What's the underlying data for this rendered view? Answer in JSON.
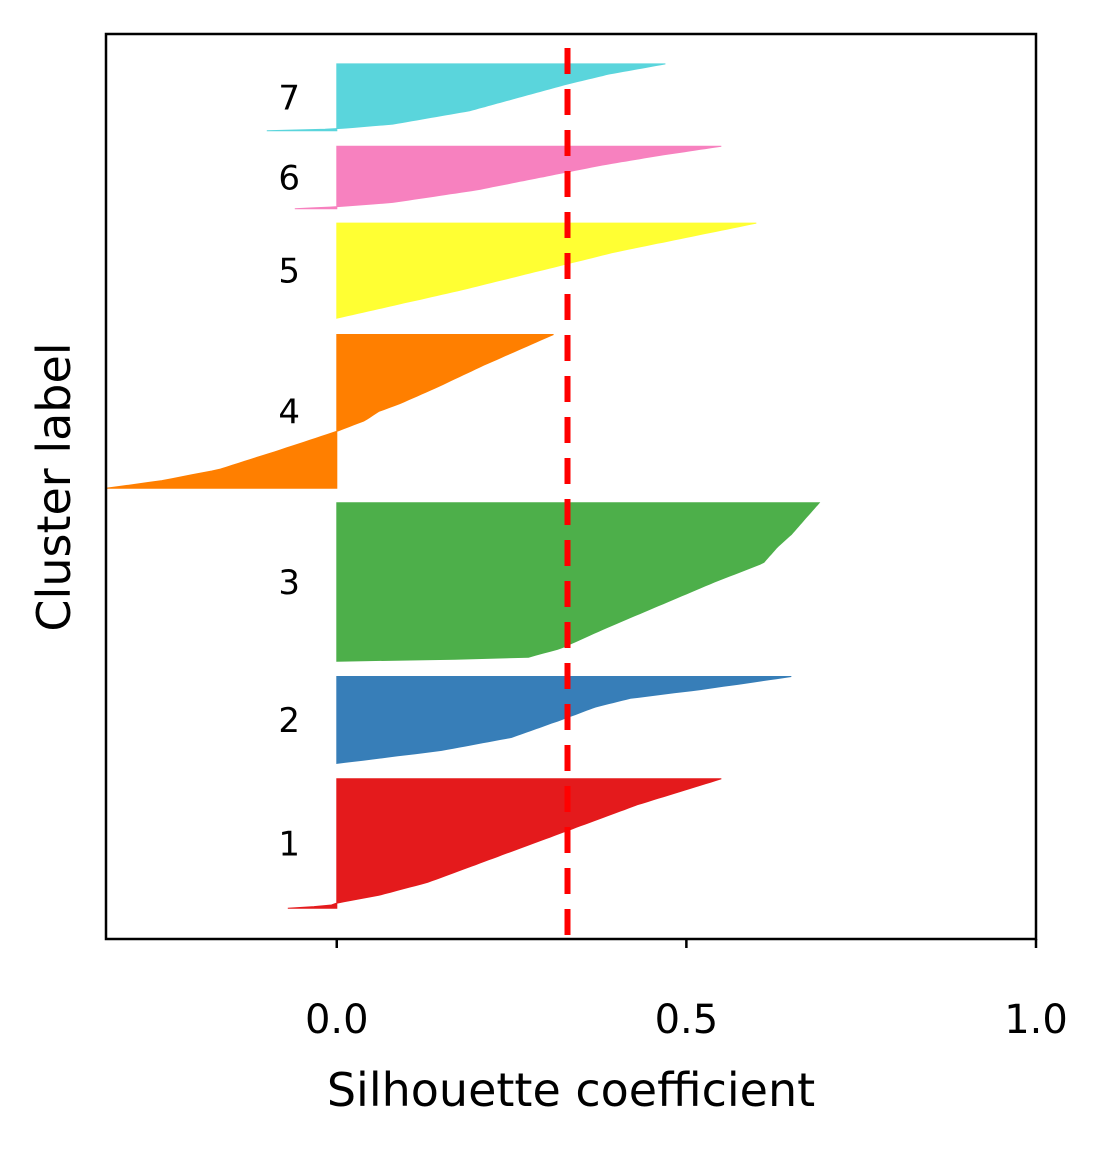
{
  "chart_data": {
    "type": "area",
    "title": "",
    "xlabel": "Silhouette coefficient",
    "ylabel": "Cluster label",
    "xlim": [
      -0.33,
      1.0
    ],
    "xticks": [
      {
        "value": 0.0,
        "label": "0.0"
      },
      {
        "value": 0.5,
        "label": "0.5"
      },
      {
        "value": 1.0,
        "label": "1.0"
      }
    ],
    "mean_silhouette": 0.33,
    "mean_line_color": "#ff0000",
    "y_units_total": 100,
    "clusters": [
      {
        "label": "1",
        "color": "#e41a1c",
        "y_start": 3.4,
        "y_end": 17.7,
        "min": -0.07,
        "max": 0.55,
        "profile": [
          [
            0,
            -0.07
          ],
          [
            0.02,
            -0.01
          ],
          [
            0.04,
            0.0
          ],
          [
            0.1,
            0.06
          ],
          [
            0.2,
            0.13
          ],
          [
            0.3,
            0.18
          ],
          [
            0.4,
            0.23
          ],
          [
            0.5,
            0.28
          ],
          [
            0.6,
            0.33
          ],
          [
            0.7,
            0.38
          ],
          [
            0.8,
            0.43
          ],
          [
            0.9,
            0.49
          ],
          [
            1,
            0.55
          ]
        ]
      },
      {
        "label": "2",
        "color": "#377eb8",
        "y_start": 19.4,
        "y_end": 29.0,
        "min": 0.0,
        "max": 0.65,
        "profile": [
          [
            0,
            0.0
          ],
          [
            0.05,
            0.05
          ],
          [
            0.15,
            0.15
          ],
          [
            0.3,
            0.25
          ],
          [
            0.5,
            0.32
          ],
          [
            0.65,
            0.37
          ],
          [
            0.75,
            0.42
          ],
          [
            0.85,
            0.52
          ],
          [
            0.93,
            0.59
          ],
          [
            1,
            0.65
          ]
        ]
      },
      {
        "label": "3",
        "color": "#4daf4a",
        "y_start": 30.7,
        "y_end": 48.2,
        "min": 0.0,
        "max": 0.69,
        "profile": [
          [
            0,
            0.0
          ],
          [
            0.02,
            0.27
          ],
          [
            0.08,
            0.32
          ],
          [
            0.2,
            0.38
          ],
          [
            0.35,
            0.46
          ],
          [
            0.5,
            0.54
          ],
          [
            0.62,
            0.61
          ],
          [
            0.72,
            0.63
          ],
          [
            0.8,
            0.65
          ],
          [
            0.9,
            0.67
          ],
          [
            1,
            0.69
          ]
        ]
      },
      {
        "label": "4",
        "color": "#ff7f00",
        "y_start": 49.8,
        "y_end": 66.8,
        "min": -0.33,
        "max": 0.31,
        "profile": [
          [
            0,
            -0.33
          ],
          [
            0.05,
            -0.25
          ],
          [
            0.12,
            -0.17
          ],
          [
            0.25,
            -0.08
          ],
          [
            0.37,
            0.0
          ],
          [
            0.44,
            0.04
          ],
          [
            0.5,
            0.06
          ],
          [
            0.55,
            0.09
          ],
          [
            0.65,
            0.14
          ],
          [
            0.8,
            0.21
          ],
          [
            0.92,
            0.27
          ],
          [
            1,
            0.31
          ]
        ]
      },
      {
        "label": "5",
        "color": "#ffff33",
        "y_start": 68.6,
        "y_end": 79.1,
        "min": 0.0,
        "max": 0.6,
        "profile": [
          [
            0,
            0.0
          ],
          [
            0.1,
            0.06
          ],
          [
            0.3,
            0.18
          ],
          [
            0.5,
            0.29
          ],
          [
            0.7,
            0.4
          ],
          [
            0.85,
            0.5
          ],
          [
            1,
            0.6
          ]
        ]
      },
      {
        "label": "6",
        "color": "#f781bf",
        "y_start": 80.7,
        "y_end": 87.6,
        "min": -0.06,
        "max": 0.55,
        "profile": [
          [
            0,
            -0.06
          ],
          [
            0.03,
            0.0
          ],
          [
            0.1,
            0.08
          ],
          [
            0.3,
            0.2
          ],
          [
            0.5,
            0.29
          ],
          [
            0.7,
            0.38
          ],
          [
            0.85,
            0.46
          ],
          [
            1,
            0.55
          ]
        ]
      },
      {
        "label": "7",
        "color": "#5ad5dc",
        "y_start": 89.3,
        "y_end": 96.7,
        "min": -0.1,
        "max": 0.47,
        "profile": [
          [
            0,
            -0.1
          ],
          [
            0.03,
            0.0
          ],
          [
            0.1,
            0.08
          ],
          [
            0.3,
            0.19
          ],
          [
            0.5,
            0.26
          ],
          [
            0.7,
            0.33
          ],
          [
            0.85,
            0.39
          ],
          [
            1,
            0.47
          ]
        ]
      }
    ]
  }
}
